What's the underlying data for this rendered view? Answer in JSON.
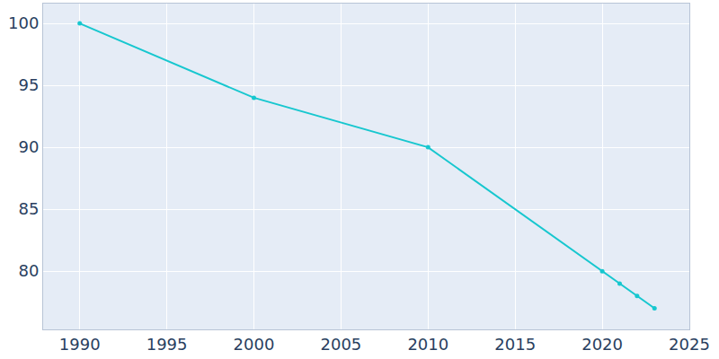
{
  "chart_data": {
    "type": "line",
    "x": [
      1990,
      2000,
      2010,
      2020,
      2021,
      2022,
      2023
    ],
    "values": [
      100,
      94,
      90,
      80,
      79,
      78,
      77
    ],
    "color": "#17c7cf",
    "marker": "circle",
    "line_style": "solid",
    "xlim": [
      1987.9,
      2025
    ],
    "xticks": [
      1990,
      1995,
      2000,
      2005,
      2010,
      2015,
      2020,
      2025
    ],
    "ylim": [
      75.3,
      101.6
    ],
    "yticks": [
      80,
      85,
      90,
      95,
      100
    ],
    "grid": true
  }
}
